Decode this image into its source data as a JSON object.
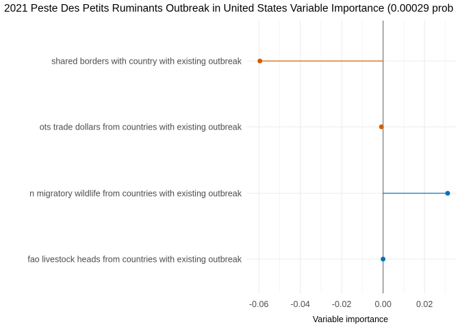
{
  "chart_data": {
    "type": "lollipop",
    "title": "2021 Peste Des Petits Ruminants Outbreak in United States Variable Importance (0.00029 prob",
    "xlabel": "Variable importance",
    "ylabel": "",
    "xlim": [
      -0.066,
      0.0355
    ],
    "x_ticks": [
      -0.06,
      -0.04,
      -0.02,
      0.0,
      0.02
    ],
    "x_tick_labels": [
      "-0.06",
      "-0.04",
      "-0.02",
      "0.00",
      "0.02"
    ],
    "zero_line": 0.0,
    "grid": true,
    "legend": "none",
    "categories": [
      "shared borders with country with existing outbreak",
      "ots trade dollars from countries with existing outbreak",
      "n migratory wildlife from countries with existing outbreak",
      "fao livestock heads from countries with existing outbreak"
    ],
    "values": [
      -0.0595,
      -0.0008,
      0.0312,
      0.0
    ],
    "colors": {
      "negative": "#d55e00",
      "positive": "#0072b2",
      "zero_line": "#808080",
      "grid_major": "#ebebeb",
      "grid_minor": "#f5f5f5"
    }
  }
}
